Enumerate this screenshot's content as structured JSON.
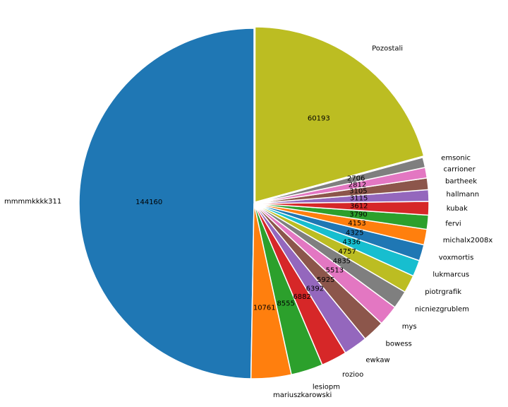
{
  "chart_data": {
    "type": "pie",
    "title": "",
    "start_angle_deg": 90,
    "direction": "counterclockwise",
    "labels": [
      "mmmmkkkk311",
      "mariuszkarowski",
      "lesiopm",
      "rozioo",
      "ewkaw",
      "bowess",
      "mys",
      "nicniezgrublem",
      "piotrgrafik",
      "lukmarcus",
      "voxmortis",
      "michalx2008x",
      "fervi",
      "kubak",
      "hallmann",
      "bartheek",
      "carrioner",
      "emsonic",
      "Pozostali"
    ],
    "values": [
      144160,
      10761,
      8555,
      6882,
      6392,
      5925,
      5513,
      4835,
      4757,
      4336,
      4325,
      4153,
      3790,
      3612,
      3115,
      3105,
      2812,
      2706,
      60193
    ],
    "colors": [
      "#1f77b4",
      "#ff7f0e",
      "#2ca02c",
      "#d62728",
      "#9467bd",
      "#8c564b",
      "#e377c2",
      "#7f7f7f",
      "#bcbd22",
      "#17becf",
      "#1f77b4",
      "#ff7f0e",
      "#2ca02c",
      "#d62728",
      "#9467bd",
      "#8c564b",
      "#e377c2",
      "#7f7f7f",
      "#bcbd22"
    ],
    "explode": [
      0,
      0,
      0,
      0,
      0,
      0,
      0,
      0,
      0,
      0,
      0,
      0,
      0,
      0,
      0,
      0,
      0,
      0,
      0.01
    ],
    "value_labels": true,
    "legend": "none"
  }
}
